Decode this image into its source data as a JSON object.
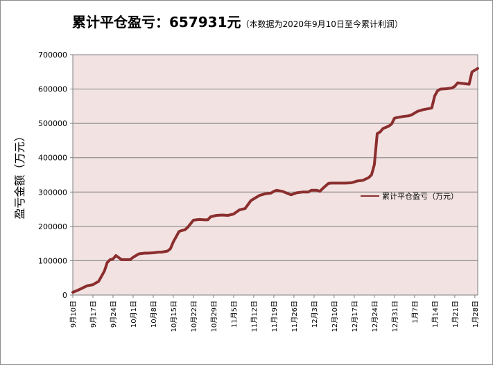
{
  "title": {
    "main": "累计平仓盈亏：657931元",
    "note": "（本数据为2020年9月10日至今累计利润）"
  },
  "colors": {
    "plot_bg": "#f2e2e2",
    "line": "#8b2e2e",
    "grid": "#7f7f7f"
  },
  "chart_data": {
    "type": "line",
    "title": "累计平仓盈亏：657931元",
    "subtitle": "（本数据为2020年9月10日至今累计利润）",
    "xlabel": "",
    "ylabel": "盈亏金额（万元）",
    "ylim": [
      0,
      700000
    ],
    "yticks": [
      "0",
      "100000",
      "200000",
      "300000",
      "400000",
      "500000",
      "600000",
      "700000"
    ],
    "xlim": [
      0,
      141
    ],
    "xticks": [
      {
        "label": "9月10日",
        "x": 0
      },
      {
        "label": "9月17日",
        "x": 7
      },
      {
        "label": "9月24日",
        "x": 14
      },
      {
        "label": "10月1日",
        "x": 21
      },
      {
        "label": "10月8日",
        "x": 28
      },
      {
        "label": "10月15日",
        "x": 35
      },
      {
        "label": "10月22日",
        "x": 42
      },
      {
        "label": "10月29日",
        "x": 49
      },
      {
        "label": "11月5日",
        "x": 56
      },
      {
        "label": "11月12日",
        "x": 63
      },
      {
        "label": "11月19日",
        "x": 70
      },
      {
        "label": "11月26日",
        "x": 77
      },
      {
        "label": "12月3日",
        "x": 84
      },
      {
        "label": "12月10日",
        "x": 91
      },
      {
        "label": "12月17日",
        "x": 98
      },
      {
        "label": "12月24日",
        "x": 105
      },
      {
        "label": "12月31日",
        "x": 112
      },
      {
        "label": "1月7日",
        "x": 119
      },
      {
        "label": "1月14日",
        "x": 126
      },
      {
        "label": "1月21日",
        "x": 133
      },
      {
        "label": "1月28日",
        "x": 140
      }
    ],
    "grid": true,
    "legend": "right",
    "series": [
      {
        "name": "累计平仓盈亏（万元）",
        "x": [
          0,
          2,
          4,
          5,
          7,
          8,
          9,
          11,
          12,
          13,
          14,
          15,
          17,
          19,
          20,
          21,
          23,
          25,
          26,
          28,
          30,
          31,
          33,
          34,
          35,
          37,
          38,
          39,
          40,
          42,
          44,
          46,
          47,
          48,
          50,
          52,
          54,
          56,
          58,
          59,
          60,
          62,
          63,
          65,
          67,
          68,
          69,
          70,
          71,
          73,
          76,
          78,
          80,
          82,
          83,
          85,
          86,
          87,
          89,
          90,
          92,
          95,
          97,
          99,
          101,
          103,
          104,
          105,
          106,
          107,
          108,
          110,
          111,
          112,
          113,
          115,
          117,
          118,
          120,
          122,
          124,
          125,
          126,
          127,
          128,
          130,
          131,
          132,
          133,
          134,
          137,
          138,
          139,
          140,
          141
        ],
        "values": [
          8000,
          15000,
          23000,
          27000,
          30000,
          35000,
          40000,
          70000,
          95000,
          103000,
          105000,
          115000,
          103000,
          103000,
          103000,
          110000,
          120000,
          122000,
          122000,
          123000,
          125000,
          125000,
          128000,
          135000,
          155000,
          185000,
          188000,
          190000,
          197000,
          218000,
          220000,
          219000,
          219000,
          228000,
          232000,
          233000,
          232000,
          236000,
          248000,
          250000,
          252000,
          275000,
          280000,
          290000,
          295000,
          296000,
          297000,
          302000,
          305000,
          302000,
          292000,
          298000,
          300000,
          300000,
          305000,
          305000,
          302000,
          310000,
          325000,
          326000,
          326000,
          326000,
          327000,
          332000,
          334000,
          342000,
          350000,
          380000,
          470000,
          475000,
          485000,
          492000,
          498000,
          515000,
          517000,
          520000,
          522000,
          525000,
          535000,
          540000,
          543000,
          545000,
          580000,
          595000,
          600000,
          601000,
          602000,
          603000,
          608000,
          618000,
          615000,
          614000,
          650000,
          655000,
          660000
        ]
      }
    ]
  }
}
